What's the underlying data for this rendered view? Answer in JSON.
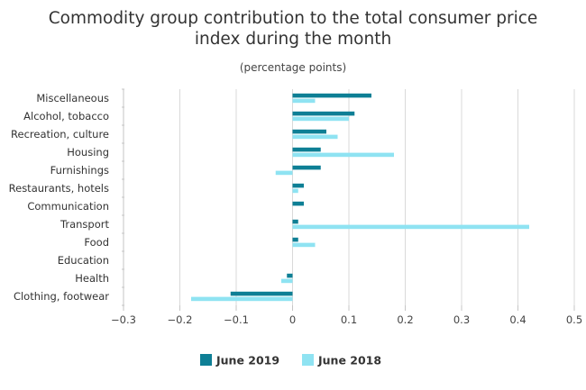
{
  "chart_data": {
    "type": "bar",
    "orientation": "horizontal",
    "title_line1": "Commodity group contribution to the total consumer price",
    "title_line2": "index during the month",
    "subtitle": "(percentage points)",
    "categories": [
      "Miscellaneous",
      "Alcohol, tobacco",
      "Recreation, culture",
      "Housing",
      "Furnishings",
      "Restaurants, hotels",
      "Communication",
      "Transport",
      "Food",
      "Education",
      "Health",
      "Clothing, footwear"
    ],
    "series": [
      {
        "name": "June 2019",
        "color": "#0e7f95",
        "values": [
          0.14,
          0.11,
          0.06,
          0.05,
          0.05,
          0.02,
          0.02,
          0.01,
          0.01,
          0.0,
          -0.01,
          -0.11
        ]
      },
      {
        "name": "June 2018",
        "color": "#8fe3f2",
        "values": [
          0.04,
          0.1,
          0.08,
          0.18,
          -0.03,
          0.01,
          0.0,
          0.42,
          0.04,
          0.0,
          -0.02,
          -0.18
        ]
      }
    ],
    "xlim": [
      -0.3,
      0.5
    ],
    "xticks": [
      "−0.3",
      "−0.2",
      "−0.1",
      "0",
      "0.1",
      "0.2",
      "0.3",
      "0.4",
      "0.5"
    ],
    "tick_values": [
      -0.3,
      -0.2,
      -0.1,
      0,
      0.1,
      0.2,
      0.3,
      0.4,
      0.5
    ],
    "grid": true,
    "legend": "bottom"
  }
}
